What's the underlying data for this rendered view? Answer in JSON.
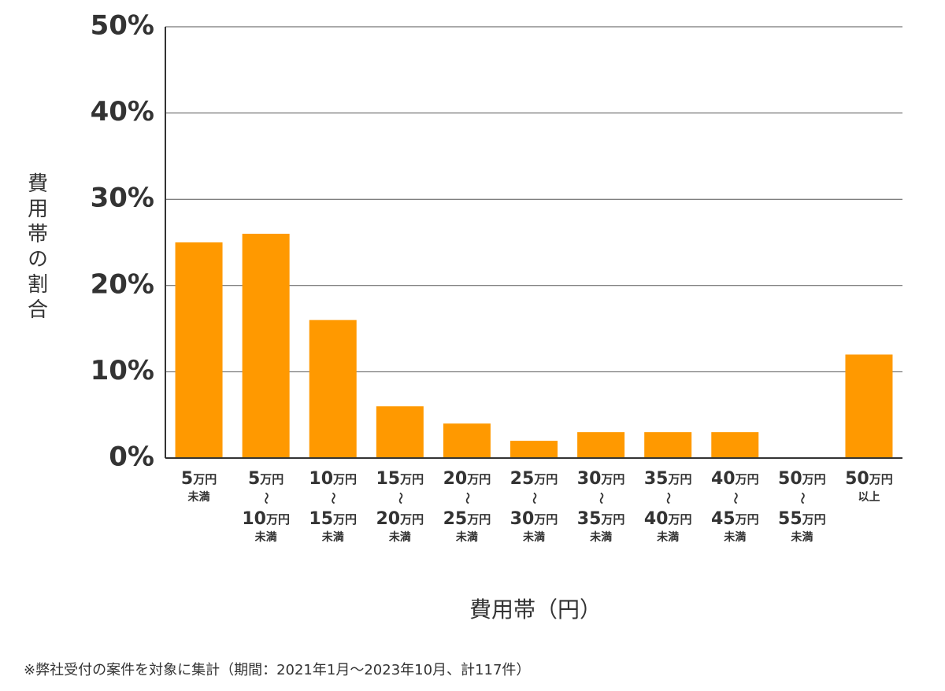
{
  "chart_data": {
    "type": "bar",
    "y_label": "費用帯の割合",
    "x_label": "費用帯（円）",
    "footnote": "※弊社受付の案件を対象に集計（期間：2021年1月～2023年10月、計117件）",
    "categories": [
      [
        "5万円",
        "未満"
      ],
      [
        "5万円",
        "〜",
        "10万円",
        "未満"
      ],
      [
        "10万円",
        "〜",
        "15万円",
        "未満"
      ],
      [
        "15万円",
        "〜",
        "20万円",
        "未満"
      ],
      [
        "20万円",
        "〜",
        "25万円",
        "未満"
      ],
      [
        "25万円",
        "〜",
        "30万円",
        "未満"
      ],
      [
        "30万円",
        "〜",
        "35万円",
        "未満"
      ],
      [
        "35万円",
        "〜",
        "40万円",
        "未満"
      ],
      [
        "40万円",
        "〜",
        "45万円",
        "未満"
      ],
      [
        "50万円",
        "〜",
        "55万円",
        "未満"
      ],
      [
        "50万円",
        "以上"
      ]
    ],
    "values": [
      25,
      26,
      16,
      6,
      4,
      2,
      3,
      3,
      3,
      0,
      12
    ],
    "color": "#ff9900",
    "ylim": [
      0,
      50
    ],
    "yticks": [
      {
        "value": 0,
        "label": "0%"
      },
      {
        "value": 10,
        "label": "10%"
      },
      {
        "value": 20,
        "label": "20%"
      },
      {
        "value": 30,
        "label": "30%"
      },
      {
        "value": 40,
        "label": "40%"
      },
      {
        "value": 50,
        "label": "50%"
      }
    ],
    "grid": true
  }
}
